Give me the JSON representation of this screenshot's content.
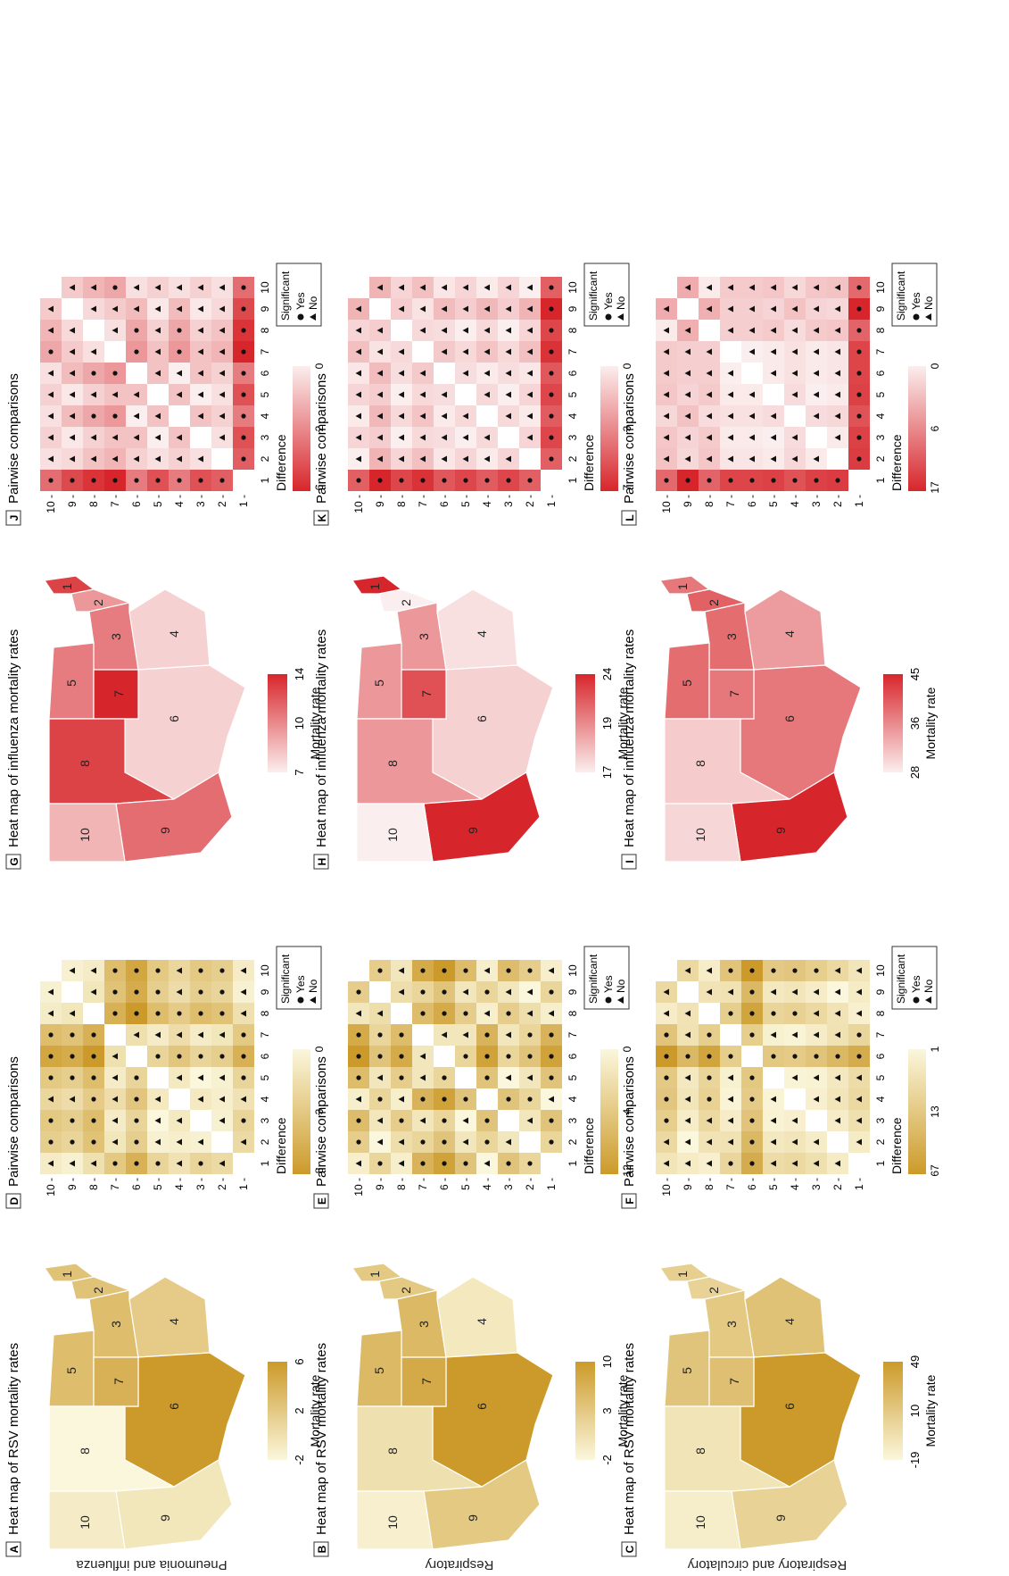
{
  "figure": {
    "rows": [
      {
        "label": "Pneumonia and influenza"
      },
      {
        "label": "Respiratory"
      },
      {
        "label": "Respiratory and circulatory"
      }
    ],
    "legend": {
      "title": "Significant",
      "yes": "Yes",
      "no": "No"
    },
    "difference_label": "Difference",
    "mortality_label": "Mortality rate"
  },
  "chart_data": [
    {
      "letter": "A",
      "type": "choropleth",
      "title": "Heat map of RSV mortality rates",
      "palette": "gold",
      "legend_title": "Mortality rate",
      "legend_ticks": [
        "-2",
        "2",
        "6"
      ],
      "range": [
        -2,
        6
      ],
      "regions": [
        {
          "region": "1",
          "value": 2.5
        },
        {
          "region": "2",
          "value": 2.5
        },
        {
          "region": "3",
          "value": 3.0
        },
        {
          "region": "4",
          "value": 1.8
        },
        {
          "region": "5",
          "value": 3.0
        },
        {
          "region": "6",
          "value": 6.0
        },
        {
          "region": "7",
          "value": 4.0
        },
        {
          "region": "8",
          "value": -2.0
        },
        {
          "region": "9",
          "value": -0.5
        },
        {
          "region": "10",
          "value": -1.0
        }
      ]
    },
    {
      "letter": "B",
      "type": "choropleth",
      "title": "Heat map of RSV mortality rates",
      "palette": "gold",
      "legend_title": "Mortality rate",
      "legend_ticks": [
        "-2",
        "3",
        "10"
      ],
      "range": [
        -2,
        10
      ],
      "regions": [
        {
          "region": "1",
          "value": 4
        },
        {
          "region": "2",
          "value": 4
        },
        {
          "region": "3",
          "value": 6
        },
        {
          "region": "4",
          "value": 0
        },
        {
          "region": "5",
          "value": 6
        },
        {
          "region": "6",
          "value": 10
        },
        {
          "region": "7",
          "value": 8
        },
        {
          "region": "8",
          "value": 1
        },
        {
          "region": "9",
          "value": 4
        },
        {
          "region": "10",
          "value": -1
        }
      ]
    },
    {
      "letter": "C",
      "type": "choropleth",
      "title": "Heat map of RSV mortality rates",
      "palette": "gold",
      "legend_title": "Mortality rate",
      "legend_ticks": [
        "-19",
        "10",
        "49"
      ],
      "range": [
        -19,
        49
      ],
      "regions": [
        {
          "region": "1",
          "value": 10
        },
        {
          "region": "2",
          "value": 8
        },
        {
          "region": "3",
          "value": 15
        },
        {
          "region": "4",
          "value": 20
        },
        {
          "region": "5",
          "value": 18
        },
        {
          "region": "6",
          "value": 49
        },
        {
          "region": "7",
          "value": 22
        },
        {
          "region": "8",
          "value": -5
        },
        {
          "region": "9",
          "value": 8
        },
        {
          "region": "10",
          "value": -12
        }
      ]
    },
    {
      "letter": "D",
      "type": "heatmap",
      "title": "Pairwise comparisons",
      "palette": "gold",
      "legend_title": "Difference",
      "legend_ticks": [
        "0",
        "3",
        "8"
      ],
      "range": [
        0,
        8
      ],
      "axis": [
        "1",
        "2",
        "3",
        "4",
        "5",
        "6",
        "7",
        "8",
        "9",
        "10"
      ],
      "values": [
        2.5,
        3.0,
        1.8,
        3.0,
        6.0,
        4.0,
        -2.0,
        -0.5,
        -1.0
      ]
    },
    {
      "letter": "E",
      "type": "heatmap",
      "title": "Pairwise comparisons",
      "palette": "gold",
      "legend_title": "Difference",
      "legend_ticks": [
        "0",
        "4",
        "12"
      ],
      "range": [
        0,
        12
      ],
      "axis": [
        "1",
        "2",
        "3",
        "4",
        "5",
        "6",
        "7",
        "8",
        "9",
        "10"
      ],
      "values": [
        4,
        6,
        0,
        6,
        10,
        8,
        1,
        4,
        -1
      ]
    },
    {
      "letter": "F",
      "type": "heatmap",
      "title": "Pairwise comparisons",
      "palette": "gold",
      "legend_title": "Difference",
      "legend_ticks": [
        "1",
        "13",
        "67"
      ],
      "range": [
        1,
        67
      ],
      "axis": [
        "1",
        "2",
        "3",
        "4",
        "5",
        "6",
        "7",
        "8",
        "9",
        "10"
      ],
      "values": [
        8,
        15,
        20,
        18,
        49,
        22,
        -5,
        8,
        -12
      ]
    },
    {
      "letter": "G",
      "type": "choropleth",
      "title": "Heat map of influenza mortality rates",
      "palette": "red",
      "legend_title": "Mortality rate",
      "legend_ticks": [
        "7",
        "10",
        "14"
      ],
      "range": [
        7,
        14
      ],
      "regions": [
        {
          "region": "1",
          "value": 13
        },
        {
          "region": "2",
          "value": 10
        },
        {
          "region": "3",
          "value": 11
        },
        {
          "region": "4",
          "value": 8
        },
        {
          "region": "5",
          "value": 11
        },
        {
          "region": "6",
          "value": 8
        },
        {
          "region": "7",
          "value": 14
        },
        {
          "region": "8",
          "value": 13
        },
        {
          "region": "9",
          "value": 11.5
        },
        {
          "region": "10",
          "value": 9
        }
      ]
    },
    {
      "letter": "H",
      "type": "choropleth",
      "title": "Heat map of influenza mortality rates",
      "palette": "red",
      "legend_title": "Mortality rate",
      "legend_ticks": [
        "17",
        "19",
        "24"
      ],
      "range": [
        17,
        24
      ],
      "regions": [
        {
          "region": "1",
          "value": 24
        },
        {
          "region": "2",
          "value": 17
        },
        {
          "region": "3",
          "value": 20
        },
        {
          "region": "4",
          "value": 17.5
        },
        {
          "region": "5",
          "value": 20
        },
        {
          "region": "6",
          "value": 18
        },
        {
          "region": "7",
          "value": 22.5
        },
        {
          "region": "8",
          "value": 20
        },
        {
          "region": "9",
          "value": 24
        },
        {
          "region": "10",
          "value": 17
        }
      ]
    },
    {
      "letter": "I",
      "type": "choropleth",
      "title": "Heat map of influenza mortality rates",
      "palette": "red",
      "legend_title": "Mortality rate",
      "legend_ticks": [
        "28",
        "36",
        "45"
      ],
      "range": [
        28,
        45
      ],
      "regions": [
        {
          "region": "1",
          "value": 38
        },
        {
          "region": "2",
          "value": 40
        },
        {
          "region": "3",
          "value": 39
        },
        {
          "region": "4",
          "value": 35
        },
        {
          "region": "5",
          "value": 39
        },
        {
          "region": "6",
          "value": 38
        },
        {
          "region": "7",
          "value": 38
        },
        {
          "region": "8",
          "value": 31
        },
        {
          "region": "9",
          "value": 45
        },
        {
          "region": "10",
          "value": 30
        }
      ]
    },
    {
      "letter": "J",
      "type": "heatmap",
      "title": "Pairwise comparisons",
      "palette": "red",
      "legend_title": "Difference",
      "legend_ticks": [
        "0",
        "2",
        "6"
      ],
      "range": [
        0,
        6
      ],
      "axis": [
        "1",
        "2",
        "3",
        "4",
        "5",
        "6",
        "7",
        "8",
        "9",
        "10"
      ],
      "values": [
        10,
        11,
        8,
        11,
        8,
        14,
        13,
        11.5,
        9
      ]
    },
    {
      "letter": "K",
      "type": "heatmap",
      "title": "Pairwise comparisons",
      "palette": "red",
      "legend_title": "Difference",
      "legend_ticks": [
        "0",
        "3",
        "7"
      ],
      "range": [
        0,
        7
      ],
      "axis": [
        "1",
        "2",
        "3",
        "4",
        "5",
        "6",
        "7",
        "8",
        "9",
        "10"
      ],
      "values": [
        17,
        20,
        17.5,
        20,
        18,
        22.5,
        20,
        24,
        17
      ]
    },
    {
      "letter": "L",
      "type": "heatmap",
      "title": "Pairwise comparisons",
      "palette": "red",
      "legend_title": "Difference",
      "legend_ticks": [
        "0",
        "6",
        "17"
      ],
      "range": [
        0,
        17
      ],
      "axis": [
        "1",
        "2",
        "3",
        "4",
        "5",
        "6",
        "7",
        "8",
        "9",
        "10"
      ],
      "values": [
        40,
        39,
        35,
        39,
        38,
        38,
        31,
        45,
        30
      ]
    }
  ],
  "colors": {
    "gold_low": "#fbf7dc",
    "gold_high": "#cc9a2a",
    "red_low": "#fbeeee",
    "red_high": "#d7262b",
    "frame": "#333333"
  }
}
